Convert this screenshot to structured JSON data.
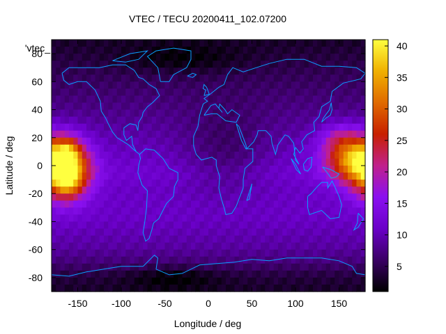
{
  "chart_data": {
    "type": "heatmap",
    "title": "VTEC / TECU 20200411_102.07200",
    "xlabel": "Longitude / deg",
    "ylabel": "Latitude / deg",
    "legend_label": "'vtec_",
    "xlim": [
      -180,
      180
    ],
    "ylim": [
      -90,
      90
    ],
    "x_ticks": [
      -150,
      -100,
      -50,
      0,
      50,
      100,
      150
    ],
    "y_ticks": [
      -80,
      -60,
      -40,
      -20,
      0,
      20,
      40,
      60,
      80
    ],
    "colorbar": {
      "range": [
        1,
        41
      ],
      "ticks": [
        5,
        10,
        15,
        20,
        25,
        30,
        35,
        40
      ],
      "palette": [
        "#000000",
        "#3a0064",
        "#6a00c8",
        "#8a10f0",
        "#c0208c",
        "#c82000",
        "#e06a00",
        "#f0b000",
        "#ffff40"
      ]
    },
    "grid": false,
    "coastline_color": "#0aa0ff",
    "lat_profile": [
      3,
      4,
      7,
      9,
      10,
      11,
      11,
      11,
      12,
      11,
      10,
      9,
      8,
      7,
      6,
      5,
      4,
      3
    ],
    "hotspots": [
      {
        "lon": -165,
        "lat": -3,
        "sx": 28,
        "sy": 20,
        "peak": 30
      },
      {
        "lon": -160,
        "lat": 10,
        "sx": 12,
        "sy": 10,
        "peak": 8
      },
      {
        "lon": -160,
        "lat": -12,
        "sx": 12,
        "sy": 8,
        "peak": 8
      },
      {
        "lon": 165,
        "lat": 5,
        "sx": 32,
        "sy": 16,
        "peak": 20
      },
      {
        "lon": 150,
        "lat": 20,
        "sx": 22,
        "sy": 10,
        "peak": 6
      }
    ],
    "dips": [
      {
        "lon": 20,
        "lat": 10,
        "sx": 50,
        "sy": 30,
        "depth": 4
      },
      {
        "lon": -30,
        "lat": 76,
        "sx": 70,
        "sy": 10,
        "depth": 3
      },
      {
        "lon": -40,
        "lat": -80,
        "sx": 50,
        "sy": 8,
        "depth": 3
      }
    ]
  }
}
